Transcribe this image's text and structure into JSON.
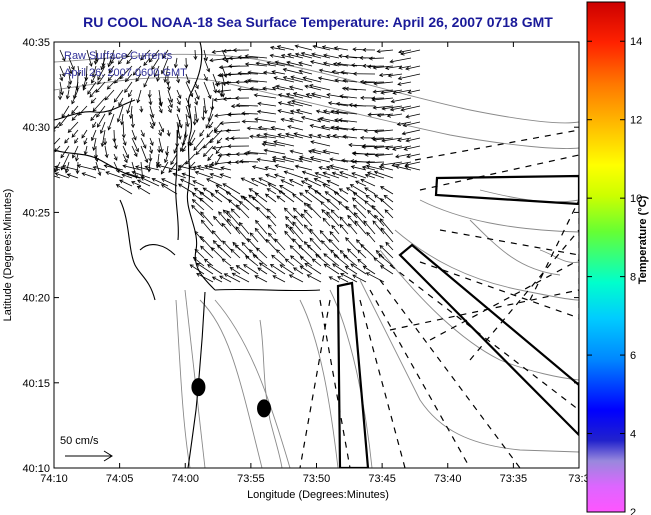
{
  "title": "RU COOL  NOAA-18  Sea Surface Temperature:  April 26, 2007 0718 GMT",
  "colors": {
    "title": "#1a1a99",
    "legend_text": "#333399",
    "contour": "#8a8a8a",
    "coast": "#000000",
    "arrow": "#000000"
  },
  "map": {
    "legend_lines": [
      "Raw Surface Currents",
      "April 26, 2007 0600 GMT"
    ],
    "scale_label": "50 cm/s"
  },
  "colorbar": {
    "label": "Temperature (°C)",
    "ticks": [
      "2",
      "4",
      "6",
      "8",
      "10",
      "12",
      "14"
    ]
  },
  "chart_data": {
    "type": "map",
    "title": "RU COOL  NOAA-18  Sea Surface Temperature:  April 26, 2007 0718 GMT",
    "xlabel": "Longitude (Degrees:Minutes)",
    "ylabel": "Latitude (Degrees:Minutes)",
    "xlim": [
      -74.1667,
      -73.5
    ],
    "ylim": [
      40.1667,
      40.5833
    ],
    "xticks": [
      "74:10",
      "74:05",
      "74:00",
      "73:55",
      "73:50",
      "73:45",
      "73:40",
      "73:35",
      "73:3"
    ],
    "yticks": [
      "40:10",
      "40:15",
      "40:20",
      "40:25",
      "40:30",
      "40:35"
    ],
    "colorbar_range": [
      2,
      15
    ],
    "vector_scale_cm_s": 50,
    "markers": [
      {
        "name": "dot-1",
        "lon": -73.9833,
        "lat": 40.2458
      },
      {
        "name": "dot-2",
        "lon": -73.9,
        "lat": 40.225
      }
    ]
  }
}
